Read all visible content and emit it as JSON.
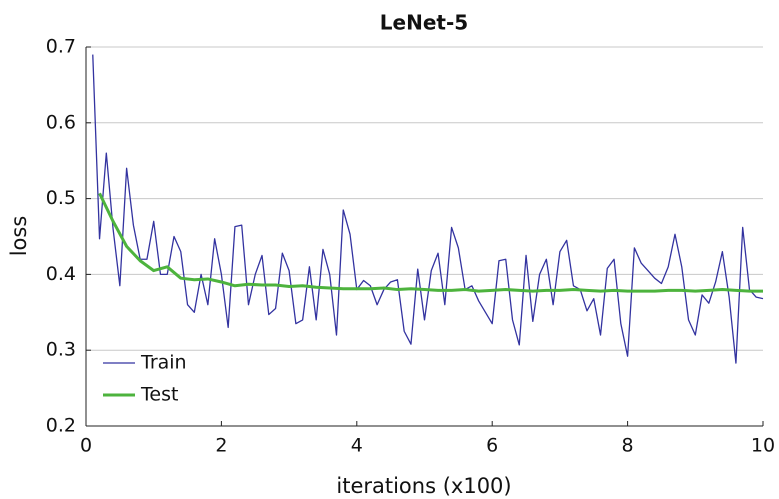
{
  "chart_data": {
    "type": "line",
    "title": "LeNet-5",
    "x_label": "iterations (x100)",
    "y_label": "loss",
    "xlim": [
      0,
      10
    ],
    "ylim": [
      0.2,
      0.7
    ],
    "xticks": [
      0,
      2,
      4,
      6,
      8,
      10
    ],
    "yticks": [
      0.2,
      0.3,
      0.4,
      0.5,
      0.6,
      0.7
    ],
    "grid": true,
    "legend": "lower-left",
    "series": [
      {
        "name": "Train",
        "color": "#3333a0",
        "width": 1.3,
        "x": [
          0.1,
          0.2,
          0.3,
          0.4,
          0.5,
          0.6,
          0.7,
          0.8,
          0.9,
          1.0,
          1.1,
          1.2,
          1.3,
          1.4,
          1.5,
          1.6,
          1.7,
          1.8,
          1.9,
          2.0,
          2.1,
          2.2,
          2.3,
          2.4,
          2.5,
          2.6,
          2.7,
          2.8,
          2.9,
          3.0,
          3.1,
          3.2,
          3.3,
          3.4,
          3.5,
          3.6,
          3.7,
          3.8,
          3.9,
          4.0,
          4.1,
          4.2,
          4.3,
          4.4,
          4.5,
          4.6,
          4.7,
          4.8,
          4.9,
          5.0,
          5.1,
          5.2,
          5.3,
          5.4,
          5.5,
          5.6,
          5.7,
          5.8,
          5.9,
          6.0,
          6.1,
          6.2,
          6.3,
          6.4,
          6.5,
          6.6,
          6.7,
          6.8,
          6.9,
          7.0,
          7.1,
          7.2,
          7.3,
          7.4,
          7.5,
          7.6,
          7.7,
          7.8,
          7.9,
          8.0,
          8.1,
          8.2,
          8.3,
          8.4,
          8.5,
          8.6,
          8.7,
          8.8,
          8.9,
          9.0,
          9.1,
          9.2,
          9.3,
          9.4,
          9.5,
          9.6,
          9.7,
          9.8,
          9.9,
          10.0
        ],
        "values": [
          0.69,
          0.447,
          0.56,
          0.46,
          0.385,
          0.54,
          0.465,
          0.42,
          0.42,
          0.47,
          0.4,
          0.4,
          0.45,
          0.43,
          0.36,
          0.35,
          0.4,
          0.36,
          0.447,
          0.4,
          0.33,
          0.463,
          0.465,
          0.36,
          0.4,
          0.425,
          0.347,
          0.355,
          0.428,
          0.405,
          0.335,
          0.34,
          0.41,
          0.34,
          0.433,
          0.4,
          0.32,
          0.485,
          0.453,
          0.38,
          0.392,
          0.385,
          0.36,
          0.38,
          0.39,
          0.393,
          0.325,
          0.308,
          0.407,
          0.34,
          0.405,
          0.428,
          0.36,
          0.462,
          0.435,
          0.38,
          0.385,
          0.365,
          0.35,
          0.335,
          0.418,
          0.42,
          0.34,
          0.307,
          0.425,
          0.338,
          0.4,
          0.42,
          0.36,
          0.43,
          0.445,
          0.385,
          0.38,
          0.352,
          0.368,
          0.32,
          0.408,
          0.42,
          0.335,
          0.292,
          0.435,
          0.415,
          0.405,
          0.395,
          0.388,
          0.41,
          0.453,
          0.41,
          0.34,
          0.32,
          0.373,
          0.362,
          0.39,
          0.43,
          0.37,
          0.283,
          0.462,
          0.38,
          0.37,
          0.368
        ]
      },
      {
        "name": "Test",
        "color": "#4db33d",
        "width": 3,
        "x": [
          0.2,
          0.4,
          0.6,
          0.8,
          1.0,
          1.2,
          1.4,
          1.6,
          1.8,
          2.0,
          2.2,
          2.4,
          2.6,
          2.8,
          3.0,
          3.2,
          3.4,
          3.6,
          3.8,
          4.0,
          4.2,
          4.4,
          4.6,
          4.8,
          5.0,
          5.2,
          5.4,
          5.6,
          5.8,
          6.0,
          6.2,
          6.4,
          6.6,
          6.8,
          7.0,
          7.2,
          7.4,
          7.6,
          7.8,
          8.0,
          8.2,
          8.4,
          8.6,
          8.8,
          9.0,
          9.2,
          9.4,
          9.6,
          9.8,
          10.0
        ],
        "values": [
          0.507,
          0.47,
          0.437,
          0.418,
          0.405,
          0.41,
          0.395,
          0.393,
          0.394,
          0.39,
          0.385,
          0.387,
          0.386,
          0.386,
          0.384,
          0.385,
          0.383,
          0.382,
          0.381,
          0.381,
          0.381,
          0.382,
          0.38,
          0.381,
          0.38,
          0.379,
          0.379,
          0.38,
          0.378,
          0.379,
          0.38,
          0.379,
          0.378,
          0.379,
          0.379,
          0.38,
          0.379,
          0.378,
          0.379,
          0.378,
          0.378,
          0.378,
          0.379,
          0.379,
          0.378,
          0.379,
          0.38,
          0.379,
          0.378,
          0.378
        ]
      }
    ]
  }
}
